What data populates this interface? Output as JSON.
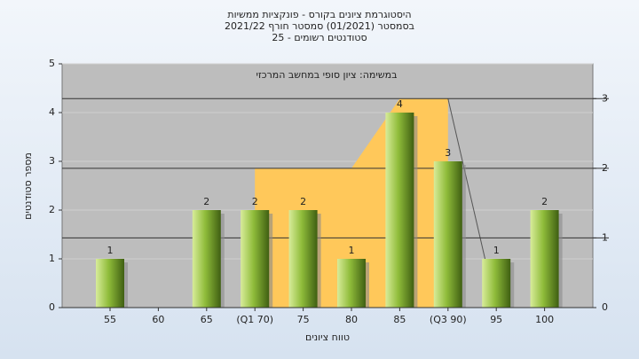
{
  "chart_data": {
    "type": "bar",
    "title": [
      "היסטוגרמת ציונים בקורס - פונקציות ממשיות",
      "בסמסטר  (01/2021)  סמסטר חורף 2021/22",
      "סטודנטים רשומים - 25"
    ],
    "subtitle": "במשימה: ציון סופי במחשב המרכזי",
    "x_label": "טווח ציונים",
    "y_label": "מספר סטודנטים",
    "categories": [
      "55",
      "60",
      "65",
      "(Q1 70)",
      "75",
      "80",
      "85",
      "(Q3 90)",
      "95",
      "100"
    ],
    "values": [
      1,
      null,
      2,
      2,
      2,
      1,
      4,
      3,
      1,
      2
    ],
    "color": "#8fbc3a",
    "ylim": [
      0,
      5
    ],
    "yticks": [
      0,
      1,
      2,
      3,
      4,
      5
    ],
    "y2lim": [
      0,
      3.5
    ],
    "y2ticks": [
      0,
      1,
      2,
      3
    ],
    "series": [
      {
        "type": "area",
        "axis": "y2",
        "color": "#ffc85a",
        "values": [
          null,
          null,
          null,
          2,
          2,
          2,
          3,
          3,
          null,
          null
        ]
      },
      {
        "type": "line",
        "axis": "y2",
        "color": "#555555",
        "values": [
          null,
          null,
          null,
          null,
          null,
          null,
          null,
          3,
          0,
          null
        ]
      }
    ],
    "grid": true
  }
}
